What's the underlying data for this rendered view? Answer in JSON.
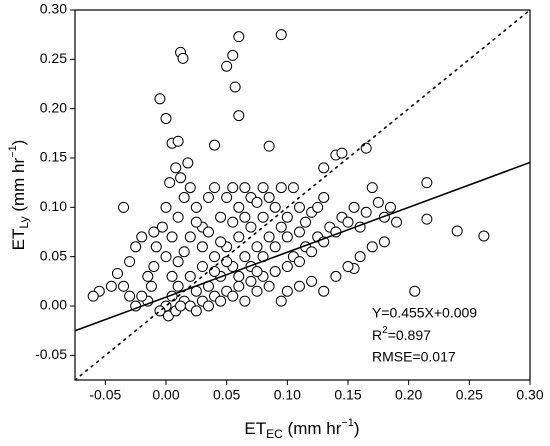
{
  "chart_data": {
    "type": "scatter",
    "x_label": [
      "ET",
      "EC",
      " (mm hr",
      "−1",
      ")"
    ],
    "y_label": [
      "ET",
      "Ly",
      " (mm hr",
      "−1",
      ")"
    ],
    "annotations": {
      "equation": "Y=0.455X+0.009",
      "r2": [
        "R",
        "2",
        "=0.897"
      ],
      "rmse": "RMSE=0.017"
    },
    "fit_line": {
      "slope": 0.455,
      "intercept": 0.009,
      "color": "#000000",
      "style": "solid"
    },
    "reference_line": {
      "slope": 1,
      "intercept": 0,
      "color": "#000000",
      "style": "dotted"
    },
    "marker": {
      "fill": "#ffffff",
      "stroke": "#000000"
    },
    "xlim": [
      -0.075,
      0.3
    ],
    "ylim": [
      -0.075,
      0.3
    ],
    "xticks": [
      -0.05,
      {
        "value": 0,
        "label": "0.00"
      },
      0.05,
      {
        "value": 0.1,
        "label": "0.10"
      },
      0.15,
      {
        "value": 0.2,
        "label": "0.20"
      },
      0.25,
      {
        "value": 0.3,
        "label": "0.30"
      }
    ],
    "yticks": [
      -0.05,
      {
        "value": 0,
        "label": "0.00"
      },
      0.05,
      {
        "value": 0.1,
        "label": "0.10"
      },
      0.15,
      {
        "value": 0.2,
        "label": "0.20"
      },
      0.25,
      {
        "value": 0.3,
        "label": "0.30"
      }
    ],
    "x": [
      0.012,
      0.014,
      0.06,
      0.095,
      0.05,
      0.055,
      0.057,
      0.06,
      -0.005,
      0,
      0.005,
      0.01,
      0.04,
      0.085,
      0.13,
      0.14,
      0.145,
      0.165,
      0.215,
      0.24,
      0.262,
      0.215,
      0.205,
      0.18,
      0.155,
      0.13,
      -0.055,
      -0.06,
      -0.045,
      -0.035,
      -0.04,
      -0.03,
      -0.025,
      -0.02,
      0,
      0.005,
      0.01,
      0.015,
      0.02,
      0.025,
      0.03,
      0.035,
      0.04,
      0.045,
      0.05,
      0.055,
      0.06,
      0.065,
      0.07,
      0.075,
      0.08,
      0.085,
      0.09,
      0.095,
      0,
      0.005,
      0.01,
      0.015,
      0.02,
      0.025,
      0.03,
      0.035,
      0.04,
      0.045,
      0.05,
      0.055,
      0.06,
      0.065,
      0.07,
      0.075,
      0,
      0.003,
      0.008,
      0.012,
      0.018,
      -0.003,
      -0.008,
      -0.01,
      -0.012,
      -0.015,
      -0.005,
      0.002,
      0.008,
      0.012,
      0.02,
      0.025,
      0.03,
      0.035,
      0.04,
      0.045,
      0.05,
      0.055,
      0.06,
      0.065,
      0.07,
      0.075,
      0.08,
      0.085,
      0.09,
      0.1,
      0.105,
      0.11,
      0.115,
      0.12,
      0.125,
      0.13,
      0.135,
      0.14,
      0.145,
      0.15,
      0.155,
      0.16,
      0.165,
      0.17,
      0.175,
      0.18,
      0.185,
      0.19,
      0.17,
      0.16,
      0.15,
      0.14,
      0.12,
      0.11,
      0.1,
      0.095,
      0.1,
      0.11,
      0.105,
      0.12,
      0.115,
      0.095,
      0.085,
      0.08,
      0.09,
      0.1,
      0.11,
      0.125,
      0.13,
      0.06,
      0.05,
      0.04,
      0.03,
      0.02,
      0.015,
      0.01,
      0.005,
      -0.02,
      -0.025,
      -0.03,
      -0.035,
      -0.015,
      -0.01,
      0.045,
      0.035,
      0.025,
      0.055,
      0.065,
      0.07,
      0.08,
      0.075
    ],
    "values": [
      0.257,
      0.251,
      0.273,
      0.275,
      0.243,
      0.254,
      0.222,
      0.193,
      0.21,
      0.19,
      0.165,
      0.167,
      0.163,
      0.162,
      0.14,
      0.153,
      0.155,
      0.16,
      0.125,
      0.076,
      0.071,
      0.088,
      0.015,
      0.065,
      0.038,
      0.015,
      0.015,
      0.01,
      0.02,
      0.1,
      0.033,
      0.045,
      0.06,
      0.07,
      0,
      0.01,
      0.02,
      0.005,
      0.03,
      0.015,
      0.04,
      0.02,
      0.05,
      0.03,
      0.06,
      0.04,
      0.07,
      0.05,
      0.08,
      0.06,
      0.09,
      0.07,
      0.1,
      0.08,
      0.05,
      0.07,
      0.09,
      0.11,
      0.12,
      0.1,
      0.08,
      0.11,
      0.12,
      0.09,
      0.11,
      0.12,
      0.1,
      0.12,
      0.11,
      0.105,
      0.1,
      0.125,
      0.14,
      0.13,
      0.145,
      0.08,
      0.06,
      0.04,
      0.02,
      0.005,
      -0.005,
      -0.01,
      -0.005,
      0,
      0,
      -0.005,
      0.005,
      0,
      0.01,
      0.005,
      0.015,
      0.01,
      0.02,
      0.005,
      0.025,
      0.015,
      0.03,
      0.02,
      0.035,
      0.04,
      0.05,
      0.045,
      0.06,
      0.055,
      0.07,
      0.065,
      0.08,
      0.075,
      0.09,
      0.085,
      0.1,
      0.08,
      0.095,
      0.12,
      0.105,
      0.09,
      0.1,
      0.085,
      0.06,
      0.05,
      0.04,
      0.03,
      0.025,
      0.02,
      0.015,
      0.005,
      0.09,
      0.1,
      0.12,
      0.095,
      0.085,
      0.12,
      0.11,
      0.12,
      0.06,
      0.07,
      0.075,
      0.1,
      0.11,
      0.03,
      0.045,
      0.035,
      0.06,
      0.07,
      0.055,
      0.045,
      0.03,
      0.01,
      0,
      0.01,
      0.02,
      0.03,
      0.075,
      0.065,
      0.075,
      0.085,
      0.085,
      0.09,
      0.04,
      0.05,
      0.035
    ]
  }
}
